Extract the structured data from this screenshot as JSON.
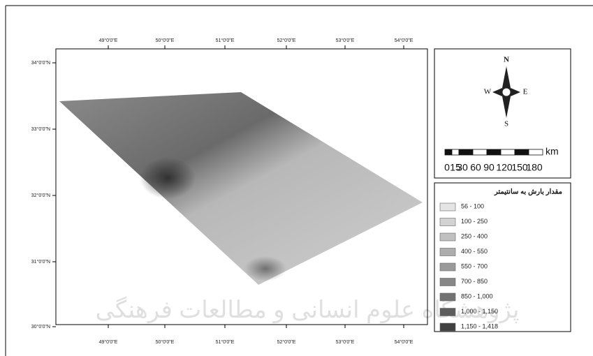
{
  "map": {
    "longitude_labels": [
      "49°0'0\"E",
      "50°0'0\"E",
      "51°0'0\"E",
      "52°0'0\"E",
      "53°0'0\"E",
      "54°0'0\"E"
    ],
    "latitude_labels": [
      "34°0'0\"N",
      "33°0'0\"N",
      "32°0'0\"N",
      "31°0'0\"N",
      "30°0'0\"N"
    ],
    "compass": {
      "north": "N",
      "south": "S",
      "east": "E",
      "west": "W"
    },
    "scale_bar": {
      "labels": [
        "0",
        "15",
        "30",
        "60",
        "90",
        "120",
        "150",
        "180"
      ],
      "unit": "km"
    },
    "legend": {
      "title": "مقدار بارش به سانتیمتر",
      "items": [
        {
          "label": "56 - 100",
          "color": "#e4e4e4"
        },
        {
          "label": "100 - 250",
          "color": "#d2d2d2"
        },
        {
          "label": "250 - 400",
          "color": "#c0c0c0"
        },
        {
          "label": "400 - 550",
          "color": "#adadad"
        },
        {
          "label": "550 - 700",
          "color": "#9a9a9a"
        },
        {
          "label": "700 - 850",
          "color": "#878787"
        },
        {
          "label": "850 - 1,000",
          "color": "#727272"
        },
        {
          "label": "1,000 - 1,150",
          "color": "#5c5c5c"
        },
        {
          "label": "1,150 - 1,418",
          "color": "#404040"
        }
      ]
    },
    "watermark": "پژوهشگاه علوم انسانی و مطالعات فرهنگی"
  }
}
